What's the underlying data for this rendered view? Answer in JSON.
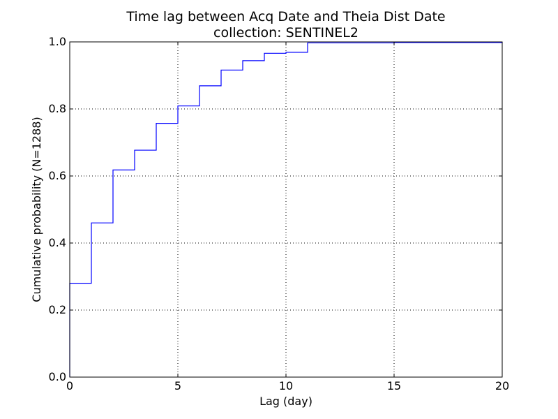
{
  "chart_data": {
    "type": "line",
    "drawstyle": "step-post",
    "title": "Time lag between Acq Date and Theia Dist Date",
    "subtitle": "collection: SENTINEL2",
    "xlabel": "Lag (day)",
    "ylabel": "Cumulative probability (N=1288)",
    "xlim": [
      0,
      20
    ],
    "ylim": [
      0,
      1.0
    ],
    "xticks": [
      0,
      5,
      10,
      15,
      20
    ],
    "xtick_labels": [
      "0",
      "5",
      "10",
      "15",
      "20"
    ],
    "yticks": [
      0.0,
      0.2,
      0.4,
      0.6,
      0.8,
      1.0
    ],
    "ytick_labels": [
      "0.0",
      "0.2",
      "0.4",
      "0.6",
      "0.8",
      "1.0"
    ],
    "grid": true,
    "line_color": "#0000ff",
    "series": [
      {
        "x": [
          0,
          1,
          2,
          3,
          4,
          5,
          6,
          7,
          8,
          9,
          10,
          11,
          12,
          13,
          14,
          15,
          16,
          17,
          18,
          19,
          20
        ],
        "y": [
          0.28,
          0.46,
          0.618,
          0.677,
          0.757,
          0.809,
          0.869,
          0.916,
          0.944,
          0.966,
          0.969,
          0.997,
          0.997,
          0.997,
          0.997,
          0.998,
          0.998,
          0.998,
          0.998,
          0.998,
          1.0
        ]
      }
    ]
  }
}
